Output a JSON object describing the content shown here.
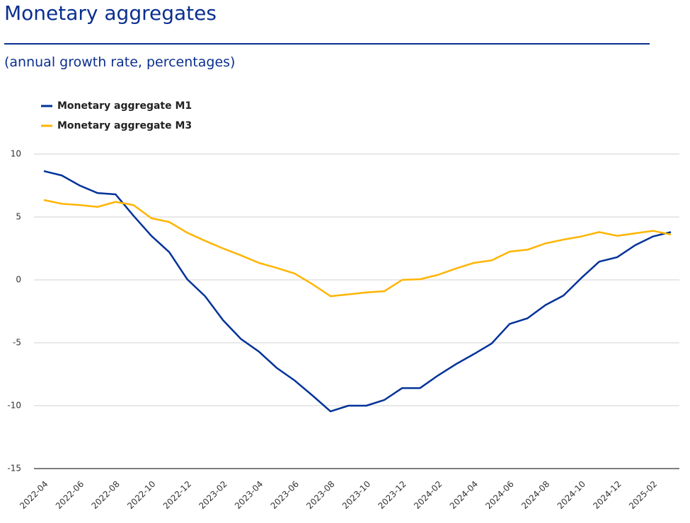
{
  "chart_data": {
    "type": "line",
    "title": "Monetary aggregates",
    "subtitle": "(annual growth rate, percentages)",
    "categories": [
      "2022-04",
      null,
      "2022-06",
      null,
      "2022-08",
      null,
      "2022-10",
      null,
      "2022-12",
      null,
      "2023-02",
      null,
      "2023-04",
      null,
      "2023-06",
      null,
      "2023-08",
      null,
      "2023-10",
      null,
      "2023-12",
      null,
      "2024-02",
      null,
      "2024-04",
      null,
      "2024-06",
      null,
      "2024-08",
      null,
      "2024-10",
      null,
      "2024-12",
      null,
      "2025-02",
      null
    ],
    "series": [
      {
        "name": "Monetary aggregate M1",
        "color": "#003299",
        "values": [
          8.65,
          8.3,
          7.5,
          6.9,
          6.8,
          5.1,
          3.5,
          2.2,
          0.05,
          -1.3,
          -3.2,
          -4.7,
          -5.7,
          -7.0,
          -8.0,
          -9.2,
          -10.45,
          -10.0,
          -10.0,
          -9.55,
          -8.6,
          -8.6,
          -7.6,
          -6.7,
          -5.9,
          -5.05,
          -3.5,
          -3.05,
          -2.0,
          -1.25,
          0.15,
          1.45,
          1.8,
          2.75,
          3.45,
          3.8
        ]
      },
      {
        "name": "Monetary aggregate M3",
        "color": "#ffb400",
        "values": [
          6.35,
          6.05,
          5.95,
          5.8,
          6.2,
          5.95,
          4.9,
          4.6,
          3.75,
          3.1,
          2.5,
          1.95,
          1.35,
          0.95,
          0.5,
          -0.35,
          -1.3,
          -1.15,
          -1.0,
          -0.9,
          0.0,
          0.05,
          0.4,
          0.9,
          1.35,
          1.55,
          2.25,
          2.4,
          2.9,
          3.2,
          3.45,
          3.8,
          3.5,
          3.7,
          3.9,
          3.6
        ]
      }
    ],
    "ylim": [
      -15,
      10
    ],
    "yticks": [
      -15,
      -10,
      -5,
      0,
      5,
      10
    ],
    "grid": true
  }
}
